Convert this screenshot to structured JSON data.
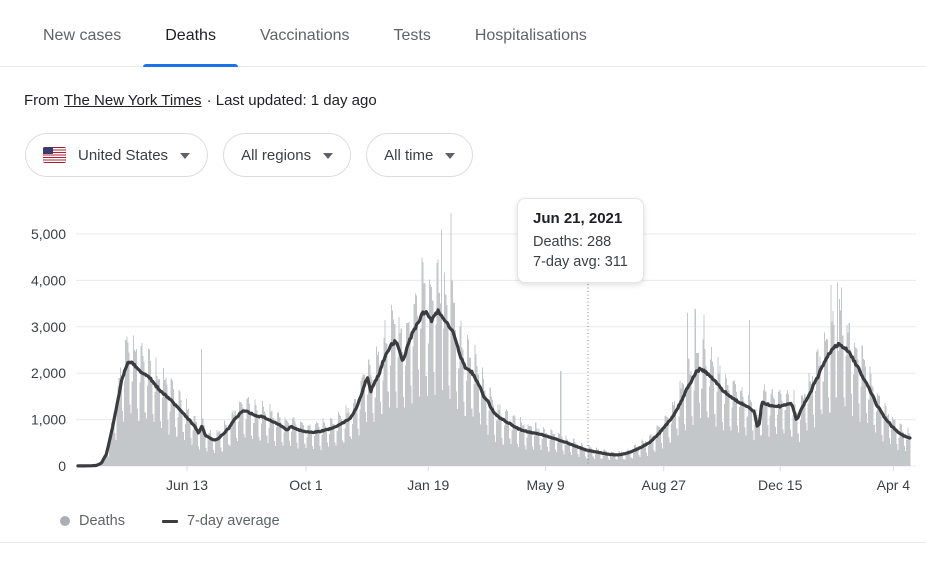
{
  "tabs": [
    {
      "label": "New cases",
      "active": false
    },
    {
      "label": "Deaths",
      "active": true
    },
    {
      "label": "Vaccinations",
      "active": false
    },
    {
      "label": "Tests",
      "active": false
    },
    {
      "label": "Hospitalisations",
      "active": false
    }
  ],
  "source": {
    "prefix": "From",
    "link": "The New York Times",
    "suffix": "· Last updated: 1 day ago"
  },
  "filters": {
    "country": {
      "label": "United States"
    },
    "region": {
      "label": "All regions"
    },
    "time": {
      "label": "All time"
    }
  },
  "legend": [
    {
      "label": "Deaths",
      "marker": "dot",
      "color": "#abaeb3"
    },
    {
      "label": "7-day average",
      "marker": "line",
      "color": "#3a3d40"
    }
  ],
  "chart_data": {
    "type": "bar+line",
    "title": "",
    "xlabel": "",
    "ylabel": "",
    "colors": {
      "bar": "#c4c7ca",
      "line": "#3a3d40",
      "grid": "#e8eaed",
      "tick": "#dadce0",
      "axis_text": "#3c4043",
      "cursor": "#80868b",
      "accent": "#1a73e8"
    },
    "x_axis": {
      "ticks": [
        {
          "f": 0.131,
          "label": "Jun 13"
        },
        {
          "f": 0.274,
          "label": "Oct 1"
        },
        {
          "f": 0.421,
          "label": "Jan 19"
        },
        {
          "f": 0.562,
          "label": "May 9"
        },
        {
          "f": 0.704,
          "label": "Aug 27"
        },
        {
          "f": 0.844,
          "label": "Dec 15"
        },
        {
          "f": 0.98,
          "label": "Apr 4"
        }
      ]
    },
    "y_axis": {
      "max": 5000,
      "ticks": [
        {
          "v": 0,
          "label": "0"
        },
        {
          "v": 1000,
          "label": "1,000"
        },
        {
          "v": 2000,
          "label": "2,000"
        },
        {
          "v": 3000,
          "label": "3,000"
        },
        {
          "v": 4000,
          "label": "4,000"
        },
        {
          "v": 5000,
          "label": "5,000"
        }
      ]
    },
    "cursor": {
      "f": 0.613
    },
    "tooltip": {
      "title": "Jun 21, 2021",
      "deaths_line": "Deaths: 288",
      "avg_line": "7-day avg: 311"
    },
    "series": [
      {
        "name": "Deaths",
        "type": "bar",
        "days": 768,
        "jitter": 0.08,
        "weekly_pattern": [
          0.5,
          0.88,
          1.28,
          1.24,
          1.18,
          1.1,
          0.62
        ],
        "spikes": [
          [
            0.149,
            2520
          ],
          [
            0.437,
            5100
          ],
          [
            0.449,
            5450
          ],
          [
            0.58,
            2050
          ],
          [
            0.733,
            3300
          ],
          [
            0.742,
            3380
          ],
          [
            0.752,
            3250
          ],
          [
            0.807,
            3150
          ],
          [
            0.905,
            3900
          ],
          [
            0.912,
            3950
          ],
          [
            0.918,
            3850
          ]
        ]
      },
      {
        "name": "7-day average",
        "type": "line",
        "points": [
          [
            0.0,
            2
          ],
          [
            0.015,
            4
          ],
          [
            0.022,
            12
          ],
          [
            0.028,
            60
          ],
          [
            0.034,
            250
          ],
          [
            0.04,
            700
          ],
          [
            0.046,
            1250
          ],
          [
            0.052,
            1800
          ],
          [
            0.057,
            2120
          ],
          [
            0.061,
            2240
          ],
          [
            0.066,
            2220
          ],
          [
            0.071,
            2120
          ],
          [
            0.078,
            2000
          ],
          [
            0.086,
            1900
          ],
          [
            0.094,
            1720
          ],
          [
            0.102,
            1570
          ],
          [
            0.111,
            1440
          ],
          [
            0.119,
            1270
          ],
          [
            0.127,
            1120
          ],
          [
            0.134,
            990
          ],
          [
            0.14,
            860
          ],
          [
            0.145,
            710
          ],
          [
            0.149,
            870
          ],
          [
            0.153,
            660
          ],
          [
            0.158,
            600
          ],
          [
            0.163,
            565
          ],
          [
            0.168,
            585
          ],
          [
            0.174,
            680
          ],
          [
            0.181,
            810
          ],
          [
            0.188,
            1000
          ],
          [
            0.194,
            1120
          ],
          [
            0.2,
            1200
          ],
          [
            0.207,
            1140
          ],
          [
            0.214,
            1080
          ],
          [
            0.221,
            1060
          ],
          [
            0.228,
            1010
          ],
          [
            0.234,
            950
          ],
          [
            0.241,
            905
          ],
          [
            0.248,
            820
          ],
          [
            0.252,
            770
          ],
          [
            0.256,
            865
          ],
          [
            0.261,
            805
          ],
          [
            0.268,
            765
          ],
          [
            0.275,
            735
          ],
          [
            0.283,
            725
          ],
          [
            0.29,
            745
          ],
          [
            0.298,
            775
          ],
          [
            0.306,
            825
          ],
          [
            0.313,
            875
          ],
          [
            0.32,
            945
          ],
          [
            0.327,
            1030
          ],
          [
            0.334,
            1220
          ],
          [
            0.34,
            1500
          ],
          [
            0.345,
            1800
          ],
          [
            0.348,
            1900
          ],
          [
            0.352,
            1620
          ],
          [
            0.356,
            1770
          ],
          [
            0.361,
            1950
          ],
          [
            0.367,
            2280
          ],
          [
            0.373,
            2500
          ],
          [
            0.378,
            2640
          ],
          [
            0.382,
            2700
          ],
          [
            0.386,
            2530
          ],
          [
            0.39,
            2280
          ],
          [
            0.394,
            2450
          ],
          [
            0.398,
            2700
          ],
          [
            0.403,
            2900
          ],
          [
            0.408,
            3060
          ],
          [
            0.413,
            3280
          ],
          [
            0.417,
            3330
          ],
          [
            0.421,
            3260
          ],
          [
            0.425,
            3140
          ],
          [
            0.429,
            3270
          ],
          [
            0.433,
            3330
          ],
          [
            0.437,
            3230
          ],
          [
            0.441,
            3150
          ],
          [
            0.445,
            3020
          ],
          [
            0.449,
            2950
          ],
          [
            0.453,
            2780
          ],
          [
            0.457,
            2500
          ],
          [
            0.462,
            2260
          ],
          [
            0.466,
            2110
          ],
          [
            0.47,
            2080
          ],
          [
            0.474,
            2010
          ],
          [
            0.479,
            1820
          ],
          [
            0.484,
            1690
          ],
          [
            0.488,
            1470
          ],
          [
            0.493,
            1380
          ],
          [
            0.497,
            1230
          ],
          [
            0.502,
            1110
          ],
          [
            0.506,
            1050
          ],
          [
            0.511,
            1000
          ],
          [
            0.515,
            945
          ],
          [
            0.52,
            905
          ],
          [
            0.524,
            855
          ],
          [
            0.529,
            805
          ],
          [
            0.533,
            775
          ],
          [
            0.538,
            750
          ],
          [
            0.542,
            730
          ],
          [
            0.547,
            715
          ],
          [
            0.551,
            700
          ],
          [
            0.556,
            685
          ],
          [
            0.56,
            660
          ],
          [
            0.565,
            635
          ],
          [
            0.569,
            610
          ],
          [
            0.574,
            585
          ],
          [
            0.578,
            560
          ],
          [
            0.583,
            530
          ],
          [
            0.587,
            505
          ],
          [
            0.592,
            470
          ],
          [
            0.596,
            440
          ],
          [
            0.601,
            410
          ],
          [
            0.606,
            375
          ],
          [
            0.61,
            350
          ],
          [
            0.615,
            330
          ],
          [
            0.62,
            311
          ],
          [
            0.625,
            295
          ],
          [
            0.63,
            280
          ],
          [
            0.634,
            262
          ],
          [
            0.639,
            250
          ],
          [
            0.644,
            242
          ],
          [
            0.648,
            240
          ],
          [
            0.653,
            250
          ],
          [
            0.657,
            265
          ],
          [
            0.662,
            292
          ],
          [
            0.667,
            322
          ],
          [
            0.671,
            358
          ],
          [
            0.676,
            395
          ],
          [
            0.68,
            435
          ],
          [
            0.685,
            485
          ],
          [
            0.69,
            548
          ],
          [
            0.694,
            625
          ],
          [
            0.699,
            715
          ],
          [
            0.703,
            805
          ],
          [
            0.708,
            905
          ],
          [
            0.712,
            1005
          ],
          [
            0.717,
            1125
          ],
          [
            0.721,
            1255
          ],
          [
            0.726,
            1425
          ],
          [
            0.73,
            1600
          ],
          [
            0.735,
            1760
          ],
          [
            0.739,
            1905
          ],
          [
            0.743,
            2025
          ],
          [
            0.747,
            2080
          ],
          [
            0.752,
            2050
          ],
          [
            0.756,
            2000
          ],
          [
            0.761,
            1925
          ],
          [
            0.765,
            1850
          ],
          [
            0.77,
            1755
          ],
          [
            0.774,
            1655
          ],
          [
            0.779,
            1575
          ],
          [
            0.783,
            1505
          ],
          [
            0.788,
            1455
          ],
          [
            0.792,
            1405
          ],
          [
            0.797,
            1355
          ],
          [
            0.801,
            1305
          ],
          [
            0.806,
            1255
          ],
          [
            0.81,
            1205
          ],
          [
            0.813,
            1160
          ],
          [
            0.816,
            860
          ],
          [
            0.819,
            905
          ],
          [
            0.822,
            1390
          ],
          [
            0.827,
            1345
          ],
          [
            0.832,
            1305
          ],
          [
            0.838,
            1295
          ],
          [
            0.843,
            1285
          ],
          [
            0.848,
            1305
          ],
          [
            0.853,
            1330
          ],
          [
            0.857,
            1350
          ],
          [
            0.86,
            1230
          ],
          [
            0.863,
            1010
          ],
          [
            0.866,
            1060
          ],
          [
            0.87,
            1255
          ],
          [
            0.875,
            1405
          ],
          [
            0.88,
            1560
          ],
          [
            0.884,
            1755
          ],
          [
            0.889,
            1905
          ],
          [
            0.893,
            2105
          ],
          [
            0.898,
            2255
          ],
          [
            0.902,
            2405
          ],
          [
            0.907,
            2510
          ],
          [
            0.911,
            2585
          ],
          [
            0.915,
            2620
          ],
          [
            0.92,
            2575
          ],
          [
            0.924,
            2505
          ],
          [
            0.929,
            2385
          ],
          [
            0.933,
            2255
          ],
          [
            0.938,
            2105
          ],
          [
            0.942,
            1955
          ],
          [
            0.947,
            1805
          ],
          [
            0.951,
            1655
          ],
          [
            0.956,
            1485
          ],
          [
            0.96,
            1305
          ],
          [
            0.965,
            1185
          ],
          [
            0.969,
            1055
          ],
          [
            0.974,
            955
          ],
          [
            0.978,
            855
          ],
          [
            0.983,
            785
          ],
          [
            0.987,
            705
          ],
          [
            0.992,
            655
          ],
          [
            1.0,
            600
          ]
        ]
      }
    ]
  }
}
